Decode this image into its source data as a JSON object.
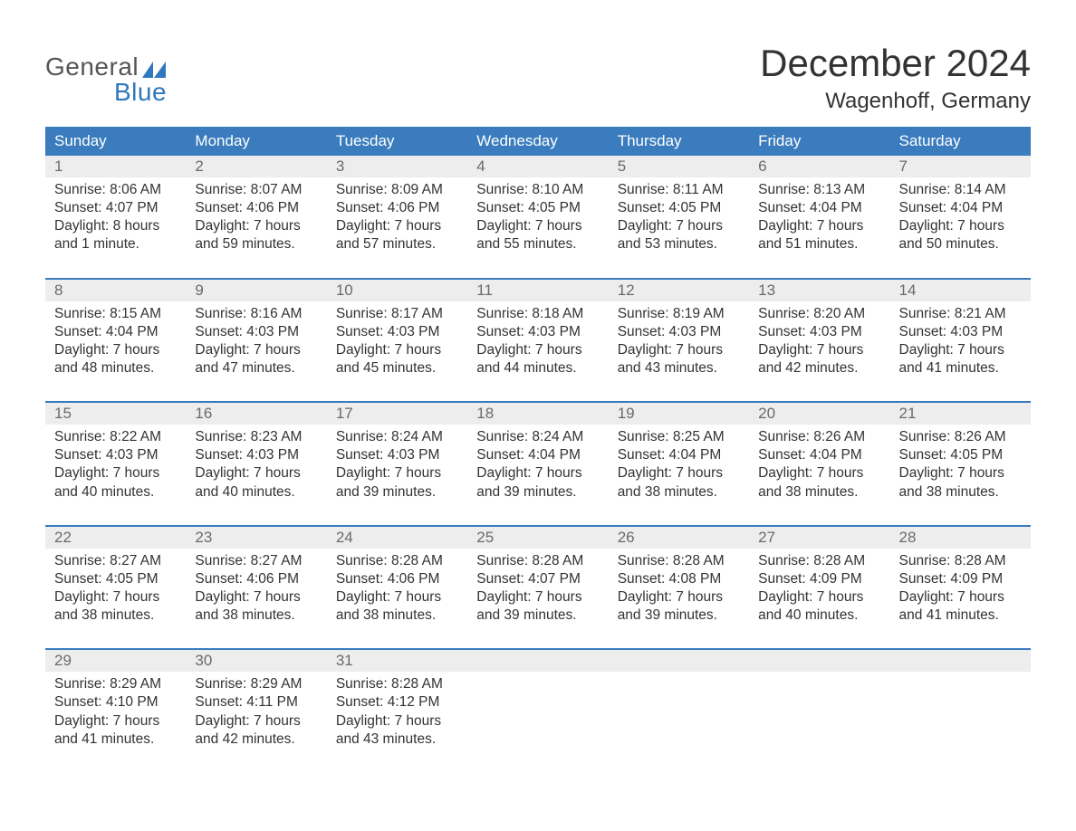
{
  "logo": {
    "word1": "General",
    "word2": "Blue",
    "text_color": "#555555",
    "accent_color": "#2f78bd"
  },
  "title": "December 2024",
  "location": "Wagenhoff, Germany",
  "colors": {
    "header_bg": "#3a7cbd",
    "header_text": "#ffffff",
    "daynum_bg": "#ededed",
    "daynum_text": "#6a6a6a",
    "body_text": "#333333",
    "separator": "#3a7cbd",
    "page_bg": "#ffffff"
  },
  "typography": {
    "month_title_fontsize": 42,
    "location_fontsize": 24,
    "dayhead_fontsize": 17,
    "daynum_fontsize": 17,
    "body_fontsize": 15.5,
    "font_family": "Arial"
  },
  "day_names": [
    "Sunday",
    "Monday",
    "Tuesday",
    "Wednesday",
    "Thursday",
    "Friday",
    "Saturday"
  ],
  "weeks": [
    [
      {
        "num": "1",
        "sunrise": "Sunrise: 8:06 AM",
        "sunset": "Sunset: 4:07 PM",
        "dl1": "Daylight: 8 hours",
        "dl2": "and 1 minute."
      },
      {
        "num": "2",
        "sunrise": "Sunrise: 8:07 AM",
        "sunset": "Sunset: 4:06 PM",
        "dl1": "Daylight: 7 hours",
        "dl2": "and 59 minutes."
      },
      {
        "num": "3",
        "sunrise": "Sunrise: 8:09 AM",
        "sunset": "Sunset: 4:06 PM",
        "dl1": "Daylight: 7 hours",
        "dl2": "and 57 minutes."
      },
      {
        "num": "4",
        "sunrise": "Sunrise: 8:10 AM",
        "sunset": "Sunset: 4:05 PM",
        "dl1": "Daylight: 7 hours",
        "dl2": "and 55 minutes."
      },
      {
        "num": "5",
        "sunrise": "Sunrise: 8:11 AM",
        "sunset": "Sunset: 4:05 PM",
        "dl1": "Daylight: 7 hours",
        "dl2": "and 53 minutes."
      },
      {
        "num": "6",
        "sunrise": "Sunrise: 8:13 AM",
        "sunset": "Sunset: 4:04 PM",
        "dl1": "Daylight: 7 hours",
        "dl2": "and 51 minutes."
      },
      {
        "num": "7",
        "sunrise": "Sunrise: 8:14 AM",
        "sunset": "Sunset: 4:04 PM",
        "dl1": "Daylight: 7 hours",
        "dl2": "and 50 minutes."
      }
    ],
    [
      {
        "num": "8",
        "sunrise": "Sunrise: 8:15 AM",
        "sunset": "Sunset: 4:04 PM",
        "dl1": "Daylight: 7 hours",
        "dl2": "and 48 minutes."
      },
      {
        "num": "9",
        "sunrise": "Sunrise: 8:16 AM",
        "sunset": "Sunset: 4:03 PM",
        "dl1": "Daylight: 7 hours",
        "dl2": "and 47 minutes."
      },
      {
        "num": "10",
        "sunrise": "Sunrise: 8:17 AM",
        "sunset": "Sunset: 4:03 PM",
        "dl1": "Daylight: 7 hours",
        "dl2": "and 45 minutes."
      },
      {
        "num": "11",
        "sunrise": "Sunrise: 8:18 AM",
        "sunset": "Sunset: 4:03 PM",
        "dl1": "Daylight: 7 hours",
        "dl2": "and 44 minutes."
      },
      {
        "num": "12",
        "sunrise": "Sunrise: 8:19 AM",
        "sunset": "Sunset: 4:03 PM",
        "dl1": "Daylight: 7 hours",
        "dl2": "and 43 minutes."
      },
      {
        "num": "13",
        "sunrise": "Sunrise: 8:20 AM",
        "sunset": "Sunset: 4:03 PM",
        "dl1": "Daylight: 7 hours",
        "dl2": "and 42 minutes."
      },
      {
        "num": "14",
        "sunrise": "Sunrise: 8:21 AM",
        "sunset": "Sunset: 4:03 PM",
        "dl1": "Daylight: 7 hours",
        "dl2": "and 41 minutes."
      }
    ],
    [
      {
        "num": "15",
        "sunrise": "Sunrise: 8:22 AM",
        "sunset": "Sunset: 4:03 PM",
        "dl1": "Daylight: 7 hours",
        "dl2": "and 40 minutes."
      },
      {
        "num": "16",
        "sunrise": "Sunrise: 8:23 AM",
        "sunset": "Sunset: 4:03 PM",
        "dl1": "Daylight: 7 hours",
        "dl2": "and 40 minutes."
      },
      {
        "num": "17",
        "sunrise": "Sunrise: 8:24 AM",
        "sunset": "Sunset: 4:03 PM",
        "dl1": "Daylight: 7 hours",
        "dl2": "and 39 minutes."
      },
      {
        "num": "18",
        "sunrise": "Sunrise: 8:24 AM",
        "sunset": "Sunset: 4:04 PM",
        "dl1": "Daylight: 7 hours",
        "dl2": "and 39 minutes."
      },
      {
        "num": "19",
        "sunrise": "Sunrise: 8:25 AM",
        "sunset": "Sunset: 4:04 PM",
        "dl1": "Daylight: 7 hours",
        "dl2": "and 38 minutes."
      },
      {
        "num": "20",
        "sunrise": "Sunrise: 8:26 AM",
        "sunset": "Sunset: 4:04 PM",
        "dl1": "Daylight: 7 hours",
        "dl2": "and 38 minutes."
      },
      {
        "num": "21",
        "sunrise": "Sunrise: 8:26 AM",
        "sunset": "Sunset: 4:05 PM",
        "dl1": "Daylight: 7 hours",
        "dl2": "and 38 minutes."
      }
    ],
    [
      {
        "num": "22",
        "sunrise": "Sunrise: 8:27 AM",
        "sunset": "Sunset: 4:05 PM",
        "dl1": "Daylight: 7 hours",
        "dl2": "and 38 minutes."
      },
      {
        "num": "23",
        "sunrise": "Sunrise: 8:27 AM",
        "sunset": "Sunset: 4:06 PM",
        "dl1": "Daylight: 7 hours",
        "dl2": "and 38 minutes."
      },
      {
        "num": "24",
        "sunrise": "Sunrise: 8:28 AM",
        "sunset": "Sunset: 4:06 PM",
        "dl1": "Daylight: 7 hours",
        "dl2": "and 38 minutes."
      },
      {
        "num": "25",
        "sunrise": "Sunrise: 8:28 AM",
        "sunset": "Sunset: 4:07 PM",
        "dl1": "Daylight: 7 hours",
        "dl2": "and 39 minutes."
      },
      {
        "num": "26",
        "sunrise": "Sunrise: 8:28 AM",
        "sunset": "Sunset: 4:08 PM",
        "dl1": "Daylight: 7 hours",
        "dl2": "and 39 minutes."
      },
      {
        "num": "27",
        "sunrise": "Sunrise: 8:28 AM",
        "sunset": "Sunset: 4:09 PM",
        "dl1": "Daylight: 7 hours",
        "dl2": "and 40 minutes."
      },
      {
        "num": "28",
        "sunrise": "Sunrise: 8:28 AM",
        "sunset": "Sunset: 4:09 PM",
        "dl1": "Daylight: 7 hours",
        "dl2": "and 41 minutes."
      }
    ],
    [
      {
        "num": "29",
        "sunrise": "Sunrise: 8:29 AM",
        "sunset": "Sunset: 4:10 PM",
        "dl1": "Daylight: 7 hours",
        "dl2": "and 41 minutes."
      },
      {
        "num": "30",
        "sunrise": "Sunrise: 8:29 AM",
        "sunset": "Sunset: 4:11 PM",
        "dl1": "Daylight: 7 hours",
        "dl2": "and 42 minutes."
      },
      {
        "num": "31",
        "sunrise": "Sunrise: 8:28 AM",
        "sunset": "Sunset: 4:12 PM",
        "dl1": "Daylight: 7 hours",
        "dl2": "and 43 minutes."
      },
      {
        "num": "",
        "sunrise": "",
        "sunset": "",
        "dl1": "",
        "dl2": ""
      },
      {
        "num": "",
        "sunrise": "",
        "sunset": "",
        "dl1": "",
        "dl2": ""
      },
      {
        "num": "",
        "sunrise": "",
        "sunset": "",
        "dl1": "",
        "dl2": ""
      },
      {
        "num": "",
        "sunrise": "",
        "sunset": "",
        "dl1": "",
        "dl2": ""
      }
    ]
  ]
}
